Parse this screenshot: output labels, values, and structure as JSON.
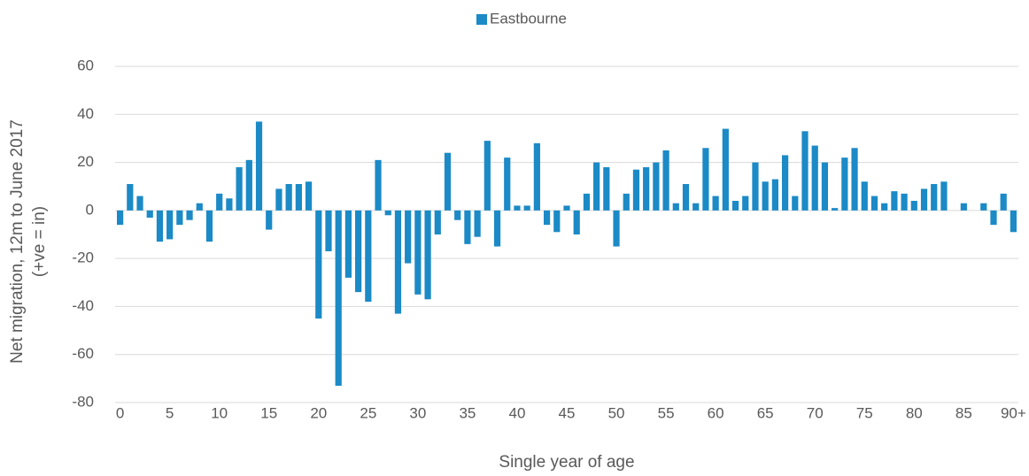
{
  "chart_data": {
    "type": "bar",
    "y_label_lines": [
      "Net migration, 12m to June 2017",
      "(+ve = in)"
    ],
    "x_label": "Single year of age",
    "categories": [
      "0",
      null,
      null,
      null,
      null,
      "5",
      null,
      null,
      null,
      null,
      "10",
      null,
      null,
      null,
      null,
      "15",
      null,
      null,
      null,
      null,
      "20",
      null,
      null,
      null,
      null,
      "25",
      null,
      null,
      null,
      null,
      "30",
      null,
      null,
      null,
      null,
      "35",
      null,
      null,
      null,
      null,
      "40",
      null,
      null,
      null,
      null,
      "45",
      null,
      null,
      null,
      null,
      "50",
      null,
      null,
      null,
      null,
      "55",
      null,
      null,
      null,
      null,
      "60",
      null,
      null,
      null,
      null,
      "65",
      null,
      null,
      null,
      null,
      "70",
      null,
      null,
      null,
      null,
      "75",
      null,
      null,
      null,
      null,
      "80",
      null,
      null,
      null,
      null,
      "85",
      null,
      null,
      null,
      null,
      "90+"
    ],
    "series": [
      {
        "name": "Eastbourne",
        "color": "#1b8ac6",
        "values": [
          -6,
          11,
          6,
          -3,
          -13,
          -12,
          -6,
          -4,
          3,
          -13,
          7,
          5,
          18,
          21,
          37,
          -8,
          9,
          11,
          11,
          12,
          -45,
          -17,
          -73,
          -28,
          -34,
          -38,
          21,
          -2,
          -43,
          -22,
          -35,
          -37,
          -10,
          24,
          -4,
          -14,
          -11,
          29,
          -15,
          22,
          2,
          2,
          28,
          -6,
          -9,
          2,
          -10,
          7,
          20,
          18,
          -15,
          7,
          17,
          18,
          20,
          25,
          3,
          11,
          3,
          26,
          6,
          34,
          4,
          6,
          20,
          12,
          13,
          23,
          6,
          33,
          27,
          20,
          1,
          22,
          26,
          12,
          6,
          3,
          8,
          7,
          4,
          9,
          11,
          12,
          0,
          3,
          0,
          3,
          -6,
          7,
          -9
        ]
      }
    ],
    "ylim": [
      -80,
      60
    ],
    "yticks": [
      -80,
      -60,
      -40,
      -20,
      0,
      20,
      40,
      60
    ],
    "grid": true,
    "legend": "top"
  }
}
